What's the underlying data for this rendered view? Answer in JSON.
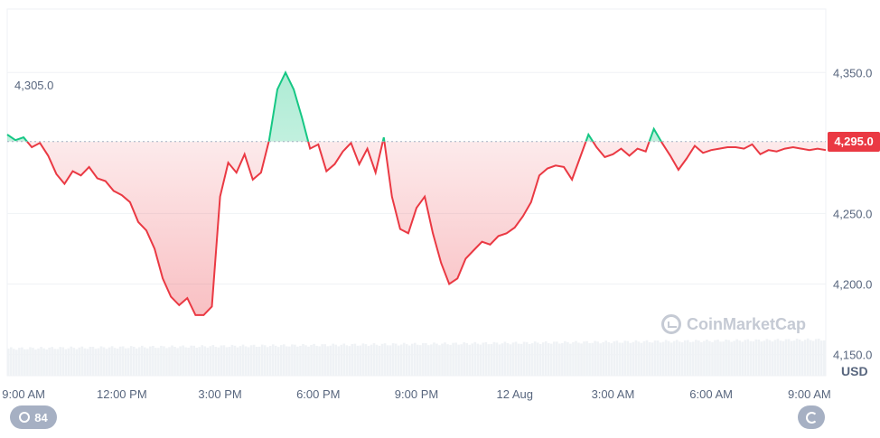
{
  "chart_data": {
    "type": "area",
    "currency": "USD",
    "open_value": 4305.0,
    "open_label": "4,305.0",
    "current_value": 4295.0,
    "current_label": "4,295.0",
    "baseline": 4301,
    "ylim": [
      4135,
      4395
    ],
    "y_ticks": [
      {
        "value": 4350,
        "label": "4,350.0"
      },
      {
        "value": 4250,
        "label": "4,250.0"
      },
      {
        "value": 4200,
        "label": "4,200.0"
      },
      {
        "value": 4150,
        "label": "4,150.0"
      }
    ],
    "x_range": [
      0,
      1.0
    ],
    "x_ticks": [
      {
        "value": 0.02,
        "label": "9:00 AM"
      },
      {
        "value": 0.14,
        "label": "12:00 PM"
      },
      {
        "value": 0.26,
        "label": "3:00 PM"
      },
      {
        "value": 0.38,
        "label": "6:00 PM"
      },
      {
        "value": 0.5,
        "label": "9:00 PM"
      },
      {
        "value": 0.62,
        "label": "12 Aug"
      },
      {
        "value": 0.74,
        "label": "3:00 AM"
      },
      {
        "value": 0.86,
        "label": "6:00 AM"
      },
      {
        "value": 0.98,
        "label": "9:00 AM"
      }
    ],
    "series": [
      {
        "x": [
          0,
          0.01,
          0.02,
          0.03,
          0.04,
          0.05,
          0.06,
          0.07,
          0.08,
          0.09,
          0.1,
          0.11,
          0.12,
          0.13,
          0.14,
          0.15,
          0.16,
          0.17,
          0.18,
          0.19,
          0.2,
          0.21,
          0.22,
          0.23,
          0.24,
          0.25,
          0.26,
          0.27,
          0.28,
          0.29,
          0.3,
          0.31,
          0.32,
          0.33,
          0.34,
          0.35,
          0.36,
          0.37,
          0.38,
          0.39,
          0.4,
          0.41,
          0.42,
          0.43,
          0.44,
          0.45,
          0.46,
          0.47,
          0.48,
          0.49,
          0.5,
          0.51,
          0.52,
          0.53,
          0.54,
          0.55,
          0.56,
          0.57,
          0.58,
          0.59,
          0.6,
          0.61,
          0.62,
          0.63,
          0.64,
          0.65,
          0.66,
          0.67,
          0.68,
          0.69,
          0.7,
          0.71,
          0.72,
          0.73,
          0.74,
          0.75,
          0.76,
          0.77,
          0.78,
          0.79,
          0.8,
          0.81,
          0.82,
          0.83,
          0.84,
          0.85,
          0.86,
          0.87,
          0.88,
          0.89,
          0.9,
          0.91,
          0.92,
          0.93,
          0.94,
          0.95,
          0.96,
          0.97,
          0.98,
          0.99,
          1.0
        ],
        "values": [
          4306,
          4302,
          4304,
          4297,
          4300,
          4291,
          4278,
          4271,
          4280,
          4277,
          4283,
          4275,
          4273,
          4266,
          4263,
          4258,
          4244,
          4238,
          4225,
          4204,
          4191,
          4185,
          4190,
          4178,
          4178,
          4184,
          4262,
          4286,
          4279,
          4292,
          4274,
          4279,
          4302,
          4338,
          4350,
          4338,
          4318,
          4296,
          4299,
          4280,
          4285,
          4294,
          4300,
          4285,
          4296,
          4279,
          4304,
          4262,
          4239,
          4236,
          4254,
          4262,
          4236,
          4215,
          4200,
          4204,
          4218,
          4224,
          4230,
          4228,
          4234,
          4236,
          4240,
          4248,
          4258,
          4277,
          4282,
          4284,
          4283,
          4274,
          4290,
          4306,
          4297,
          4290,
          4292,
          4296,
          4291,
          4296,
          4294,
          4310,
          4300,
          4291,
          4281,
          4289,
          4298,
          4293,
          4295,
          4296,
          4297,
          4297,
          4296,
          4299,
          4292,
          4295,
          4294,
          4296,
          4297,
          4296,
          4295,
          4296,
          4295
        ]
      }
    ],
    "volume": {
      "shown": true,
      "relative_height": 0.15
    }
  },
  "watermark": {
    "text": "CoinMarketCap",
    "icon": "coinmarketcap-logo-icon"
  },
  "controls": {
    "history_count": "84",
    "history_icon": "history-icon",
    "reset_icon": "reset-zoom-icon"
  },
  "colors": {
    "up": "#16c784",
    "down": "#ea3943",
    "up_fill": "#c8f1dd",
    "down_fill": "#fbd5d7"
  }
}
